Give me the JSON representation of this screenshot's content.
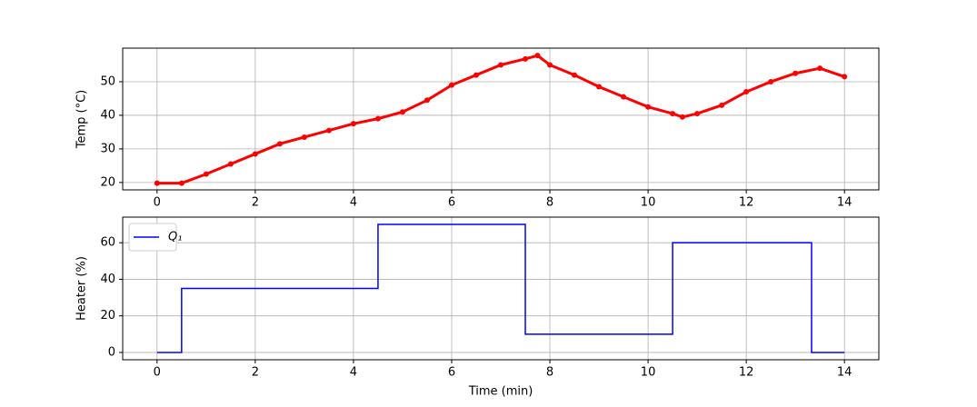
{
  "chart_data": [
    {
      "type": "line",
      "ylabel": "Temp (°C)",
      "x": [
        0,
        0.5,
        1,
        1.5,
        2,
        2.5,
        3,
        3.5,
        4,
        4.5,
        5,
        5.5,
        6,
        6.5,
        7,
        7.5,
        7.75,
        8,
        8.5,
        9,
        9.5,
        10,
        10.5,
        10.7,
        11,
        11.5,
        12,
        12.5,
        13,
        13.5,
        14
      ],
      "series": [
        {
          "color": "#ff0000",
          "marker": true,
          "values": [
            19.8,
            19.8,
            22.5,
            25.5,
            28.5,
            31.5,
            33.5,
            35.5,
            37.5,
            39,
            41,
            44.5,
            49,
            52,
            55,
            56.8,
            57.8,
            55,
            52,
            48.5,
            45.5,
            42.5,
            40.5,
            39.5,
            40.5,
            43,
            47,
            50,
            52.5,
            54,
            51.5
          ]
        }
      ],
      "xlim": [
        -0.7,
        14.7
      ],
      "xticks": [
        0,
        2,
        4,
        6,
        8,
        10,
        12,
        14
      ],
      "ylim": [
        17.8,
        60
      ],
      "yticks": [
        20,
        30,
        40,
        50
      ],
      "grid": true
    },
    {
      "type": "line",
      "xlabel": "Time (min)",
      "ylabel": "Heater (%)",
      "x": [
        0,
        0.5,
        0.5,
        4.5,
        4.5,
        7.5,
        7.5,
        10.5,
        10.5,
        13.33,
        13.33,
        14
      ],
      "series": [
        {
          "name": "Q₁",
          "color": "#0000ff",
          "marker": false,
          "values": [
            0,
            0,
            35,
            35,
            70,
            70,
            10,
            10,
            60,
            60,
            0,
            0
          ]
        }
      ],
      "xlim": [
        -0.7,
        14.7
      ],
      "xticks": [
        0,
        2,
        4,
        6,
        8,
        10,
        12,
        14
      ],
      "ylim": [
        -4,
        74
      ],
      "yticks": [
        0,
        20,
        40,
        60
      ],
      "grid": true,
      "legend": "upper-left"
    }
  ]
}
